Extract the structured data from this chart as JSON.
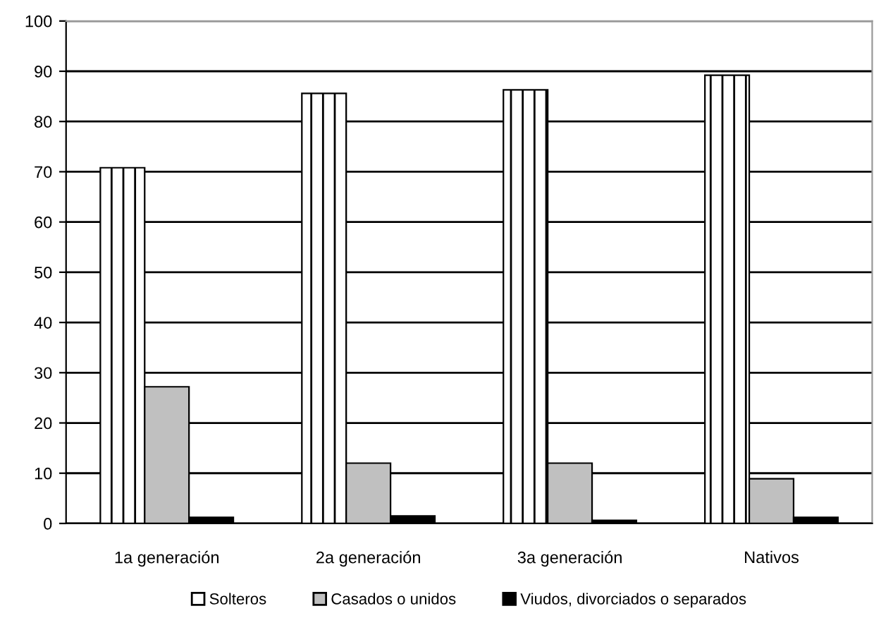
{
  "chart_data": {
    "type": "bar",
    "categories": [
      "1a generación",
      "2a generación",
      "3a generación",
      "Nativos"
    ],
    "series": [
      {
        "name": "Solteros",
        "color": "#ffffff",
        "values": [
          70.8,
          85.6,
          86.3,
          89.2
        ]
      },
      {
        "name": "Casados o unidos",
        "color": "#c0c0c0",
        "values": [
          27.2,
          12.0,
          12.0,
          8.9
        ]
      },
      {
        "name": "Viudos, divorciados o separados",
        "color": "#000000",
        "values": [
          1.2,
          1.5,
          0.6,
          1.2
        ]
      }
    ],
    "ylim": [
      0,
      100
    ],
    "yticks": [
      0,
      10,
      20,
      30,
      40,
      50,
      60,
      70,
      80,
      90,
      100
    ],
    "grid": "y",
    "legend": "bottom"
  }
}
